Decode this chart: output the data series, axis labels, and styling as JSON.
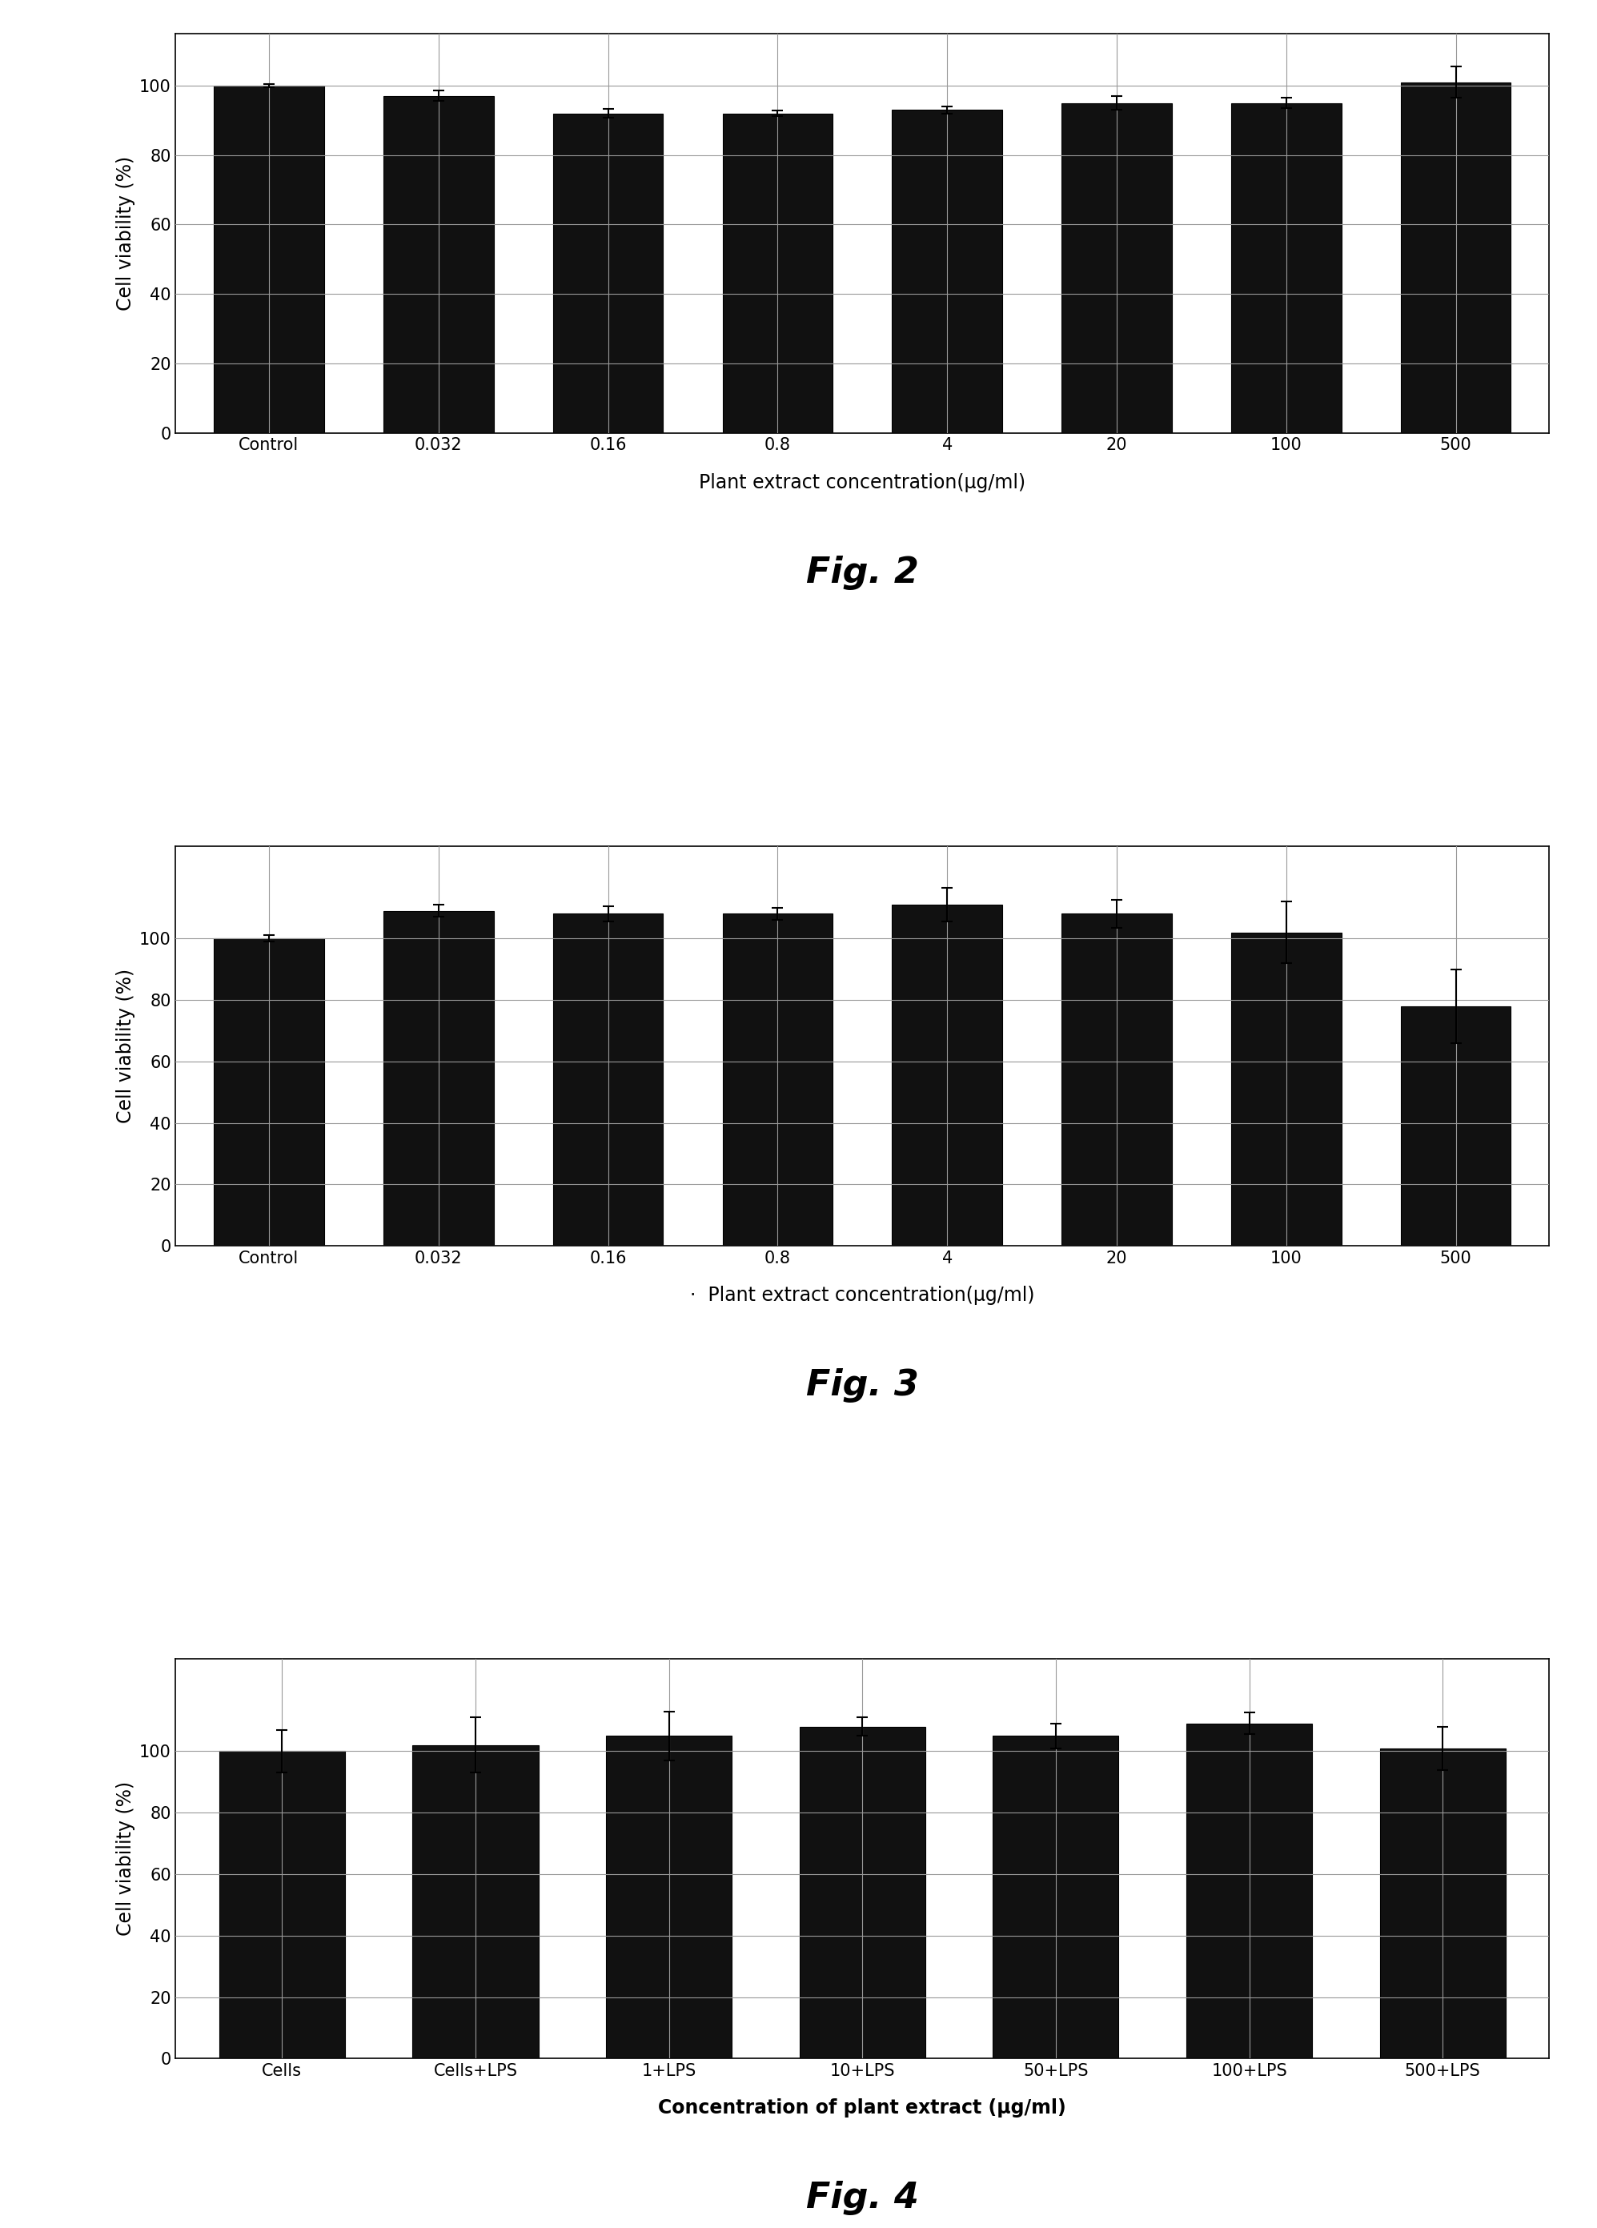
{
  "fig2": {
    "categories": [
      "Control",
      "0.032",
      "0.16",
      "0.8",
      "4",
      "20",
      "100",
      "500"
    ],
    "values": [
      100,
      97,
      92,
      92,
      93,
      95,
      95,
      101
    ],
    "errors": [
      0.5,
      1.5,
      1.2,
      0.8,
      1.0,
      2.0,
      1.5,
      4.5
    ],
    "ylabel": "Cell viability (%)",
    "xlabel": "Plant extract concentration(μg/ml)",
    "title": "Fig. 2",
    "ylim": [
      0,
      115
    ],
    "yticks": [
      0,
      20,
      40,
      60,
      80,
      100
    ]
  },
  "fig3": {
    "categories": [
      "Control",
      "0.032",
      "0.16",
      "0.8",
      "4",
      "20",
      "100",
      "500"
    ],
    "values": [
      100,
      109,
      108,
      108,
      111,
      108,
      102,
      78
    ],
    "errors": [
      1.0,
      2.0,
      2.5,
      2.0,
      5.5,
      4.5,
      10.0,
      12.0
    ],
    "ylabel": "Cell viability (%)",
    "xlabel": "Plant extract concentration(μg/ml)",
    "title": "Fig. 3",
    "ylim": [
      0,
      130
    ],
    "yticks": [
      0,
      20,
      40,
      60,
      80,
      100
    ]
  },
  "fig4": {
    "categories": [
      "Cells",
      "Cells+LPS",
      "1+LPS",
      "10+LPS",
      "50+LPS",
      "100+LPS",
      "500+LPS"
    ],
    "values": [
      100,
      102,
      105,
      108,
      105,
      109,
      101
    ],
    "errors": [
      7.0,
      9.0,
      8.0,
      3.0,
      4.0,
      3.5,
      7.0
    ],
    "ylabel": "Cell viability (%)",
    "xlabel": "Concentration of plant extract (μg/ml)",
    "title": "Fig. 4",
    "ylim": [
      0,
      130
    ],
    "yticks": [
      0,
      20,
      40,
      60,
      80,
      100
    ]
  },
  "bar_color": "#111111",
  "bar_edgecolor": "#000000",
  "bar_width": 0.65,
  "background_color": "#ffffff",
  "fig_title_fontsize": 32,
  "ylabel_fontsize": 17,
  "xlabel_fontsize": 17,
  "tick_fontsize": 15,
  "fig3_xlabel_prefix": "  ·  "
}
